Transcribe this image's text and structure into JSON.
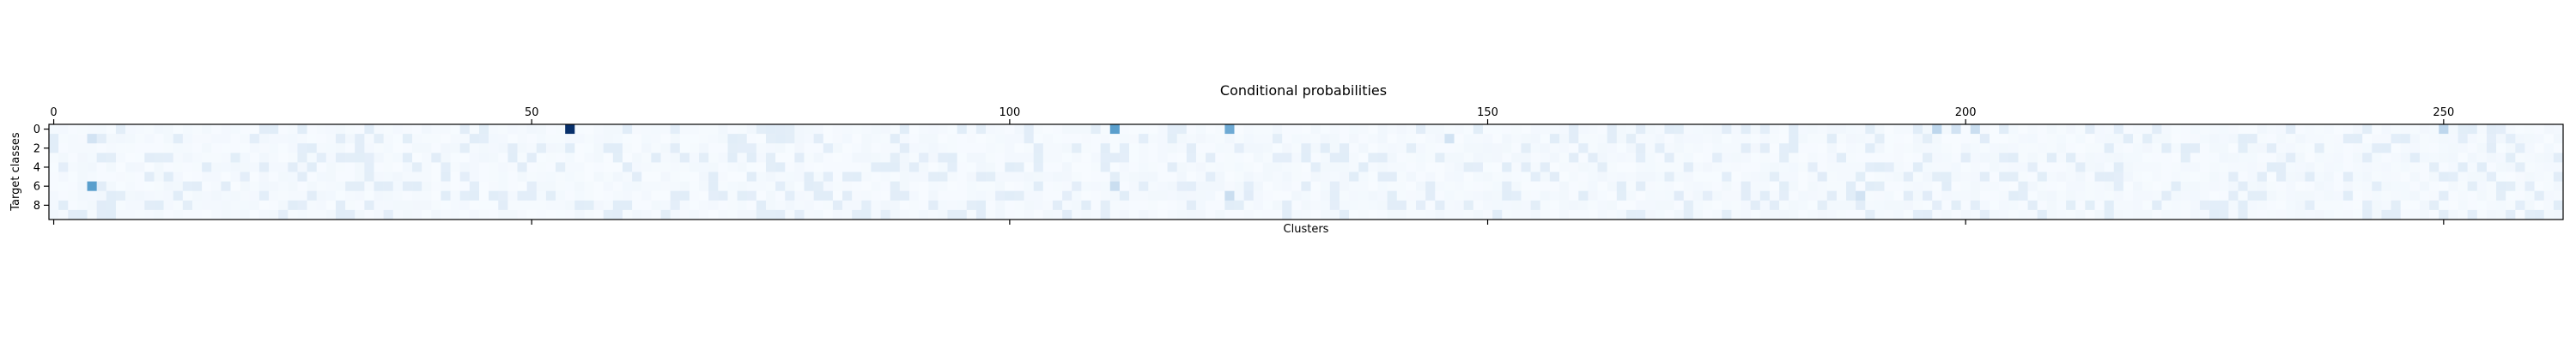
{
  "chart_data": {
    "type": "heatmap",
    "title": "Conditional probabilities",
    "xlabel": "Clusters",
    "ylabel": "Target classes",
    "n_clusters": 263,
    "n_classes": 10,
    "x_ticks": [
      0,
      50,
      100,
      150,
      200,
      250
    ],
    "x_tick_labels": [
      "0",
      "50",
      "100",
      "150",
      "200",
      "250"
    ],
    "y_ticks": [
      0,
      2,
      4,
      6,
      8
    ],
    "y_tick_labels": [
      "0",
      "2",
      "4",
      "6",
      "8"
    ],
    "xlim": [
      -0.5,
      262.5
    ],
    "ylim": [
      9.5,
      -0.5
    ],
    "colormap": "Blues",
    "color_scale": {
      "min": 0,
      "max": 1,
      "low_color": "#f7fbff",
      "high_color": "#08306b"
    },
    "baseline_value": 0.05,
    "highlighted_cells": [
      {
        "cluster": 4,
        "class": 1,
        "value": 0.25
      },
      {
        "cluster": 4,
        "class": 6,
        "value": 0.6
      },
      {
        "cluster": 5,
        "class": 8,
        "value": 0.15
      },
      {
        "cluster": 54,
        "class": 0,
        "value": 1.0
      },
      {
        "cluster": 111,
        "class": 0,
        "value": 0.6
      },
      {
        "cluster": 111,
        "class": 6,
        "value": 0.3
      },
      {
        "cluster": 123,
        "class": 0,
        "value": 0.55
      },
      {
        "cluster": 123,
        "class": 7,
        "value": 0.3
      },
      {
        "cluster": 146,
        "class": 1,
        "value": 0.25
      },
      {
        "cluster": 189,
        "class": 7,
        "value": 0.25
      },
      {
        "cluster": 197,
        "class": 0,
        "value": 0.35
      },
      {
        "cluster": 199,
        "class": 0,
        "value": 0.25
      },
      {
        "cluster": 201,
        "class": 0,
        "value": 0.3
      },
      {
        "cluster": 250,
        "class": 0,
        "value": 0.35
      }
    ],
    "x_axis_position": "top-and-bottom",
    "grid": false,
    "legend": "none"
  }
}
